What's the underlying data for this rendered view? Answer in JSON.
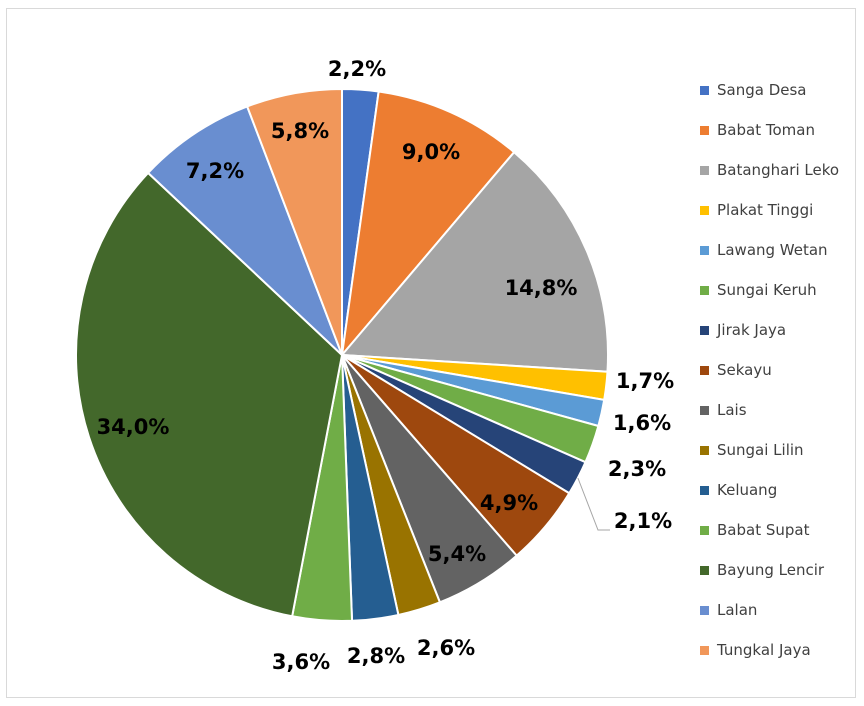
{
  "chart_data": {
    "type": "pie",
    "title": "",
    "legend_position": "right",
    "slices": [
      {
        "label": "Sanga Desa",
        "value": 2.2,
        "display": "2,2%",
        "color": "#4472C4"
      },
      {
        "label": "Babat Toman",
        "value": 9.0,
        "display": "9,0%",
        "color": "#ED7D31"
      },
      {
        "label": "Batanghari Leko",
        "value": 14.8,
        "display": "14,8%",
        "color": "#A5A5A5"
      },
      {
        "label": "Plakat Tinggi",
        "value": 1.7,
        "display": "1,7%",
        "color": "#FFC000"
      },
      {
        "label": "Lawang Wetan",
        "value": 1.6,
        "display": "1,6%",
        "color": "#5B9BD5"
      },
      {
        "label": "Sungai Keruh",
        "value": 2.3,
        "display": "2,3%",
        "color": "#70AD47"
      },
      {
        "label": "Jirak Jaya",
        "value": 2.1,
        "display": "2,1%",
        "color": "#264478"
      },
      {
        "label": "Sekayu",
        "value": 4.9,
        "display": "4,9%",
        "color": "#9E480E"
      },
      {
        "label": "Lais",
        "value": 5.4,
        "display": "5,4%",
        "color": "#636363"
      },
      {
        "label": "Sungai Lilin",
        "value": 2.6,
        "display": "2,6%",
        "color": "#997300"
      },
      {
        "label": "Keluang",
        "value": 2.8,
        "display": "2,8%",
        "color": "#255E91"
      },
      {
        "label": "Babat Supat",
        "value": 3.6,
        "display": "3,6%",
        "color": "#70AD47"
      },
      {
        "label": "Bayung Lencir",
        "value": 34.0,
        "display": "34,0%",
        "color": "#43682B"
      },
      {
        "label": "Lalan",
        "value": 7.2,
        "display": "7,2%",
        "color": "#698ED0"
      },
      {
        "label": "Tungkal Jaya",
        "value": 5.8,
        "display": "5,8%",
        "color": "#F1975A"
      }
    ]
  }
}
